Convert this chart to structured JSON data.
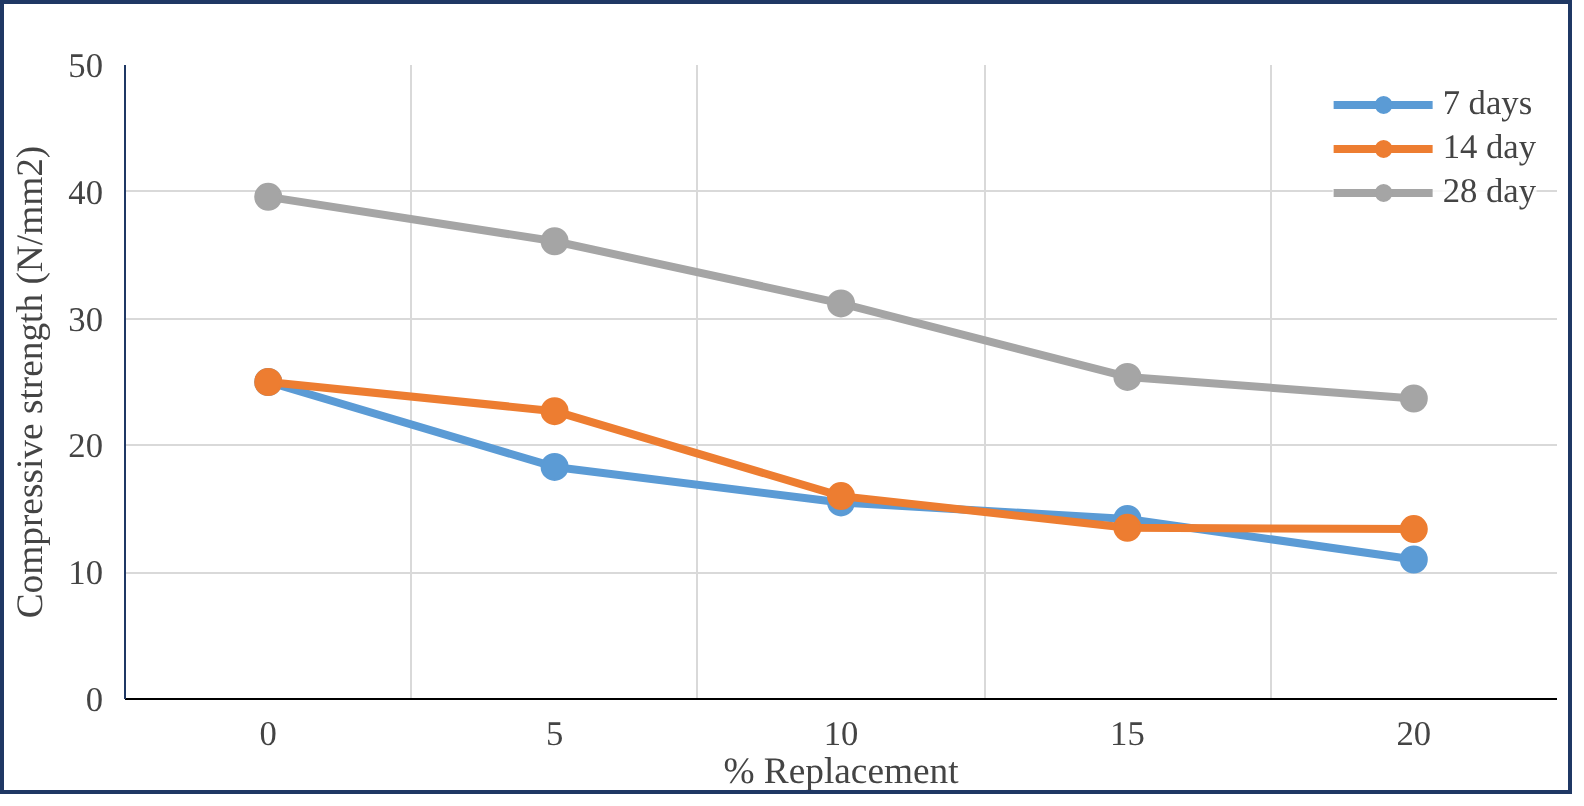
{
  "chart_data": {
    "type": "line",
    "xlabel": "% Replacement",
    "ylabel": "Compressive strength (N/mm2)",
    "categories": [
      "0",
      "5",
      "10",
      "15",
      "20"
    ],
    "series": [
      {
        "name": "7 days",
        "color": "#5b9bd5",
        "values": [
          25,
          18.3,
          15.5,
          14.2,
          11
        ]
      },
      {
        "name": "14 day",
        "color": "#ed7d31",
        "values": [
          25,
          22.7,
          16,
          13.5,
          13.4
        ]
      },
      {
        "name": "28 day",
        "color": "#a5a5a5",
        "values": [
          39.6,
          36.1,
          31.2,
          25.4,
          23.7
        ]
      }
    ],
    "ylim": [
      0,
      50
    ],
    "yticks": [
      0,
      10,
      20,
      30,
      40,
      50
    ],
    "grid": true,
    "legend": "top right",
    "marker": "circle",
    "line_style": "solid"
  }
}
